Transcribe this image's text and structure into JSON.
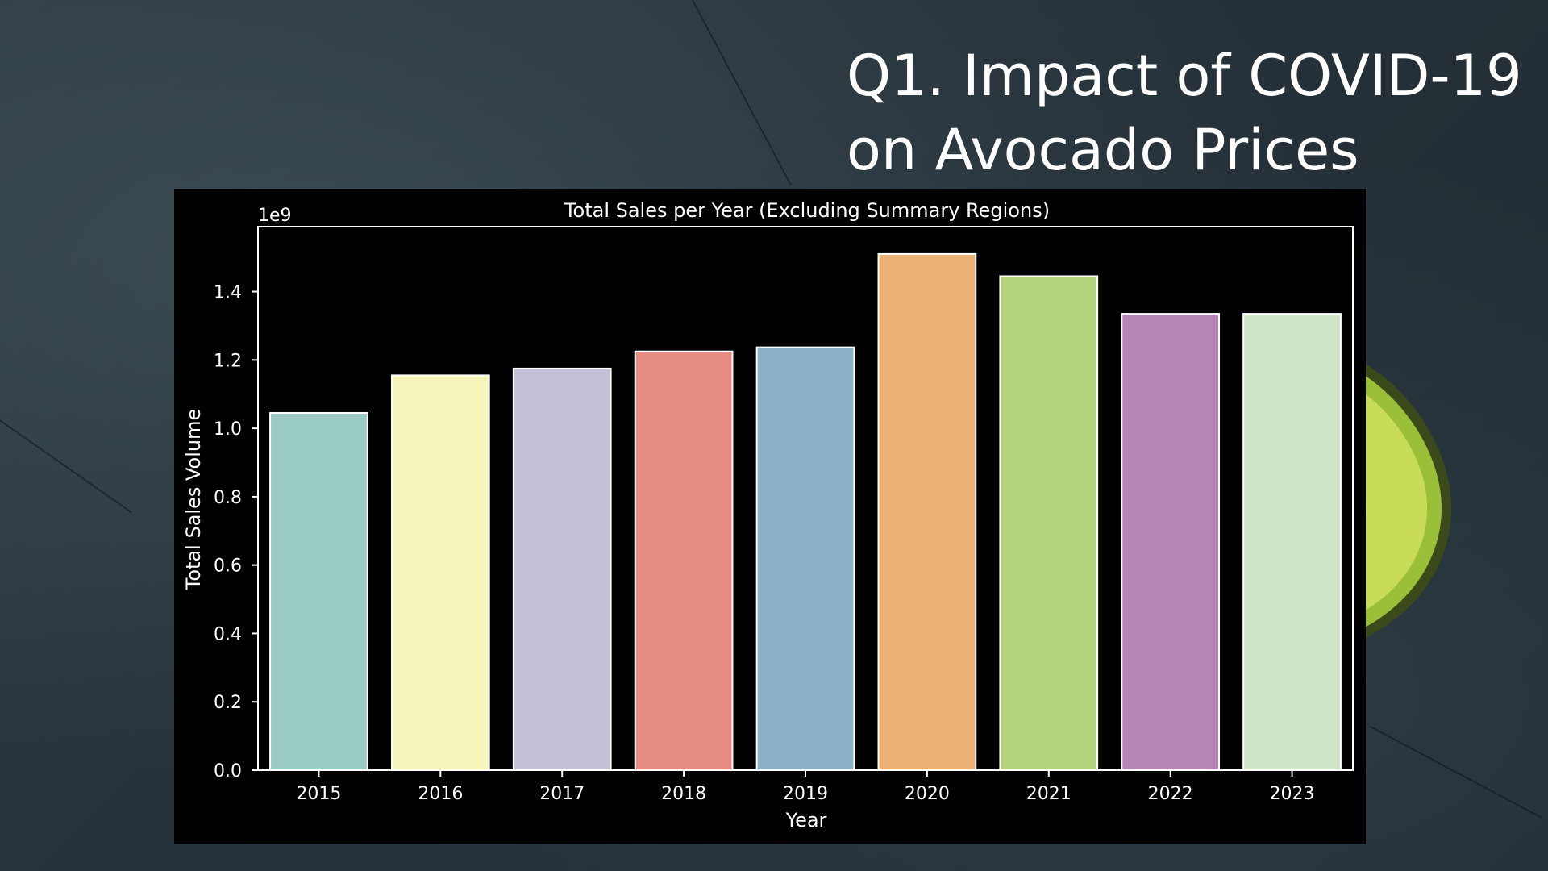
{
  "slide": {
    "title_line1": "Q1. Impact of COVID-19",
    "title_line2": "on Avocado Prices"
  },
  "chart_data": {
    "type": "bar",
    "title": "Total Sales per Year (Excluding Summary Regions)",
    "xlabel": "Year",
    "ylabel": "Total Sales Volume",
    "offset_label": "1e9",
    "categories": [
      "2015",
      "2016",
      "2017",
      "2018",
      "2019",
      "2020",
      "2021",
      "2022",
      "2023"
    ],
    "values": [
      1.045,
      1.155,
      1.175,
      1.225,
      1.237,
      1.51,
      1.445,
      1.335,
      1.335
    ],
    "ylim": [
      0,
      1.59
    ],
    "yticks": [
      0.0,
      0.2,
      0.4,
      0.6,
      0.8,
      1.0,
      1.2,
      1.4
    ],
    "ytick_labels": [
      "0.0",
      "0.2",
      "0.4",
      "0.6",
      "0.8",
      "1.0",
      "1.2",
      "1.4"
    ],
    "colors": [
      "#99cac3",
      "#f6f6bb",
      "#c3c0d7",
      "#e78c83",
      "#8db1cb",
      "#ebb174",
      "#b3d27b",
      "#b786b7",
      "#d1e6c9"
    ],
    "bar_edge_color": "#ffffff",
    "background": "#000000",
    "grid": false,
    "legend": "none"
  }
}
